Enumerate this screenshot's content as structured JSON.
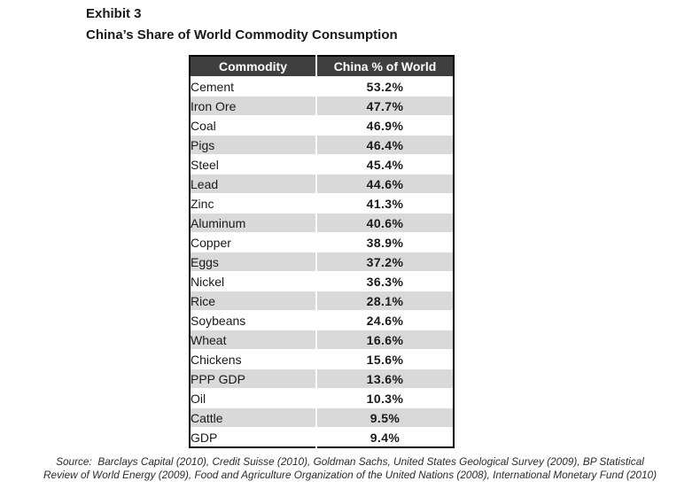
{
  "header": {
    "exhibit": "Exhibit 3",
    "title": "China’s Share of World Commodity Consumption"
  },
  "table": {
    "columns": [
      "Commodity",
      "China % of World"
    ],
    "rows": [
      {
        "commodity": "Cement",
        "value": "53.2%"
      },
      {
        "commodity": "Iron Ore",
        "value": "47.7%"
      },
      {
        "commodity": "Coal",
        "value": "46.9%"
      },
      {
        "commodity": "Pigs",
        "value": "46.4%"
      },
      {
        "commodity": "Steel",
        "value": "45.4%"
      },
      {
        "commodity": "Lead",
        "value": "44.6%"
      },
      {
        "commodity": "Zinc",
        "value": "41.3%"
      },
      {
        "commodity": "Aluminum",
        "value": "40.6%"
      },
      {
        "commodity": "Copper",
        "value": "38.9%"
      },
      {
        "commodity": "Eggs",
        "value": "37.2%"
      },
      {
        "commodity": "Nickel",
        "value": "36.3%"
      },
      {
        "commodity": "Rice",
        "value": "28.1%"
      },
      {
        "commodity": "Soybeans",
        "value": "24.6%"
      },
      {
        "commodity": "Wheat",
        "value": "16.6%"
      },
      {
        "commodity": "Chickens",
        "value": "15.6%"
      },
      {
        "commodity": "PPP GDP",
        "value": "13.6%"
      },
      {
        "commodity": "Oil",
        "value": "10.3%"
      },
      {
        "commodity": "Cattle",
        "value": "9.5%"
      },
      {
        "commodity": "GDP",
        "value": "9.4%"
      }
    ]
  },
  "source": {
    "lines": [
      "Source:  Barclays Capital (2010), Credit Suisse (2010), Goldman Sachs, United States Geological Survey (2009), BP Statistical",
      "Review of World Energy (2009), Food and Agriculture Organization of the United Nations (2008), International Monetary Fund (2010)"
    ]
  },
  "chart_data": {
    "type": "table",
    "title": "China’s Share of World Commodity Consumption",
    "columns": [
      "Commodity",
      "China % of World"
    ],
    "categories": [
      "Cement",
      "Iron Ore",
      "Coal",
      "Pigs",
      "Steel",
      "Lead",
      "Zinc",
      "Aluminum",
      "Copper",
      "Eggs",
      "Nickel",
      "Rice",
      "Soybeans",
      "Wheat",
      "Chickens",
      "PPP GDP",
      "Oil",
      "Cattle",
      "GDP"
    ],
    "values": [
      53.2,
      47.7,
      46.9,
      46.4,
      45.4,
      44.6,
      41.3,
      40.6,
      38.9,
      37.2,
      36.3,
      28.1,
      24.6,
      16.6,
      15.6,
      13.6,
      10.3,
      9.5,
      9.4
    ],
    "unit": "%"
  },
  "colors": {
    "header_bg": "#3f3f3f",
    "header_text": "#ffffff",
    "row_alt_bg": "#d9d9d9",
    "row_bg": "#ffffff",
    "table_border": "#000000",
    "text": "#1a1a1a"
  }
}
